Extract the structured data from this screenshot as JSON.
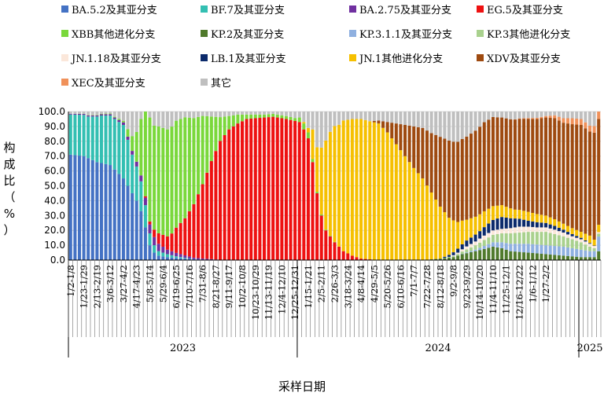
{
  "chart_data": {
    "type": "bar",
    "stacked": true,
    "ylabel_chars": [
      "构",
      "成",
      "比",
      "（",
      "%",
      "）"
    ],
    "xlabel": "采样日期",
    "ylim": [
      0,
      100
    ],
    "yticks": [
      "0.0",
      "10.0",
      "20.0",
      "30.0",
      "40.0",
      "50.0",
      "60.0",
      "70.0",
      "80.0",
      "90.0",
      "100.0"
    ],
    "legend_position": "top",
    "series": [
      {
        "name": "BA.5.2及其亚分支",
        "color": "#4472c4"
      },
      {
        "name": "BF.7及其亚分支",
        "color": "#33bfb2"
      },
      {
        "name": "BA.2.75及其亚分支",
        "color": "#7030a0"
      },
      {
        "name": "EG.5及其亚分支",
        "color": "#ee1111"
      },
      {
        "name": "XBB其他进化分支",
        "color": "#7ad83b"
      },
      {
        "name": "KP.2及其亚分支",
        "color": "#507a2c"
      },
      {
        "name": "KP.3.1.1及其亚分支",
        "color": "#8fb0e0"
      },
      {
        "name": "KP.3其他进化分支",
        "color": "#a9d18e"
      },
      {
        "name": "JN.1.18及其亚分支",
        "color": "#fbe7da"
      },
      {
        "name": "LB.1及其亚分支",
        "color": "#0b2a6b"
      },
      {
        "name": "JN.1其他进化分支",
        "color": "#f6c000"
      },
      {
        "name": "XDV及其亚分支",
        "color": "#9e4a10"
      },
      {
        "name": "XEC及其亚分支",
        "color": "#f0915a"
      },
      {
        "name": "其它",
        "color": "#bfbfbf"
      }
    ],
    "key_points": {
      "BA.5.2及其亚分支": [
        [
          0,
          71
        ],
        [
          3,
          70
        ],
        [
          6,
          66
        ],
        [
          9,
          64
        ],
        [
          12,
          55
        ],
        [
          14,
          45
        ],
        [
          15,
          40
        ],
        [
          16,
          33
        ],
        [
          17,
          22
        ],
        [
          18,
          10
        ],
        [
          19,
          5
        ],
        [
          20,
          3
        ],
        [
          22,
          2
        ],
        [
          26,
          1
        ],
        [
          30,
          0.3
        ],
        [
          34,
          0
        ]
      ],
      "BF.7及其亚分支": [
        [
          0,
          27
        ],
        [
          4,
          28
        ],
        [
          7,
          32
        ],
        [
          10,
          34
        ],
        [
          12,
          36
        ],
        [
          14,
          26
        ],
        [
          16,
          20
        ],
        [
          17,
          15
        ],
        [
          18,
          8
        ],
        [
          19,
          5
        ],
        [
          20,
          3
        ],
        [
          22,
          2
        ],
        [
          24,
          1
        ],
        [
          28,
          0
        ]
      ],
      "BA.2.75及其亚分支": [
        [
          0,
          0.5
        ],
        [
          10,
          1
        ],
        [
          14,
          2.5
        ],
        [
          16,
          4
        ],
        [
          17,
          5
        ],
        [
          18,
          6
        ],
        [
          20,
          5
        ],
        [
          22,
          3
        ],
        [
          25,
          2
        ],
        [
          28,
          1
        ],
        [
          32,
          0.5
        ],
        [
          36,
          0
        ]
      ],
      "EG.5及其亚分支": [
        [
          0,
          0
        ],
        [
          16,
          0
        ],
        [
          18,
          2
        ],
        [
          19,
          5
        ],
        [
          20,
          7
        ],
        [
          21,
          8
        ],
        [
          22,
          9
        ],
        [
          23,
          12
        ],
        [
          24,
          17
        ],
        [
          26,
          25
        ],
        [
          28,
          36
        ],
        [
          30,
          50
        ],
        [
          32,
          66
        ],
        [
          34,
          80
        ],
        [
          36,
          88
        ],
        [
          38,
          92
        ],
        [
          40,
          95
        ],
        [
          44,
          96
        ],
        [
          46,
          96.5
        ],
        [
          49,
          95
        ],
        [
          52,
          93
        ],
        [
          53,
          88
        ],
        [
          54,
          82
        ],
        [
          55,
          66
        ],
        [
          56,
          45
        ],
        [
          57,
          30
        ],
        [
          58,
          20
        ],
        [
          60,
          12
        ],
        [
          62,
          6
        ],
        [
          64,
          3
        ],
        [
          66,
          1
        ],
        [
          70,
          0
        ]
      ],
      "XBB其他进化分支": [
        [
          0,
          0
        ],
        [
          10,
          0.5
        ],
        [
          12,
          1
        ],
        [
          13,
          5
        ],
        [
          14,
          10
        ],
        [
          15,
          20
        ],
        [
          16,
          38
        ],
        [
          17,
          57
        ],
        [
          18,
          70
        ],
        [
          19,
          70
        ],
        [
          20,
          72
        ],
        [
          22,
          72
        ],
        [
          24,
          72
        ],
        [
          26,
          68
        ],
        [
          28,
          58
        ],
        [
          30,
          46
        ],
        [
          32,
          30
        ],
        [
          34,
          16
        ],
        [
          36,
          9
        ],
        [
          38,
          6
        ],
        [
          40,
          3
        ],
        [
          44,
          2
        ],
        [
          48,
          2
        ],
        [
          51,
          2
        ],
        [
          52,
          3
        ],
        [
          53,
          4
        ],
        [
          54,
          4
        ],
        [
          55,
          2
        ],
        [
          56,
          1
        ],
        [
          58,
          0.5
        ],
        [
          62,
          0
        ]
      ],
      "KP.2及其亚分支": [
        [
          0,
          0
        ],
        [
          80,
          0
        ],
        [
          84,
          1
        ],
        [
          87,
          2
        ],
        [
          89,
          4
        ],
        [
          92,
          6
        ],
        [
          96,
          9
        ],
        [
          98,
          8
        ],
        [
          100,
          6
        ],
        [
          104,
          5
        ],
        [
          108,
          4
        ],
        [
          112,
          3
        ],
        [
          116,
          2
        ],
        [
          119,
          2
        ],
        [
          120,
          6
        ]
      ],
      "KP.3.1.1及其亚分支": [
        [
          0,
          0
        ],
        [
          88,
          0
        ],
        [
          92,
          1
        ],
        [
          96,
          3
        ],
        [
          100,
          5
        ],
        [
          104,
          6
        ],
        [
          108,
          6
        ],
        [
          112,
          6
        ],
        [
          116,
          5
        ],
        [
          118,
          4
        ],
        [
          119,
          4
        ],
        [
          120,
          10
        ]
      ],
      "KP.3其他进化分支": [
        [
          0,
          0
        ],
        [
          84,
          0
        ],
        [
          88,
          1
        ],
        [
          92,
          3
        ],
        [
          96,
          5
        ],
        [
          100,
          7
        ],
        [
          104,
          8
        ],
        [
          108,
          9
        ],
        [
          112,
          7
        ],
        [
          116,
          5
        ],
        [
          118,
          3
        ],
        [
          119,
          2
        ],
        [
          120,
          2
        ]
      ],
      "JN.1.18及其亚分支": [
        [
          0,
          0
        ],
        [
          86,
          0
        ],
        [
          90,
          2
        ],
        [
          94,
          3
        ],
        [
          98,
          3
        ],
        [
          102,
          4
        ],
        [
          106,
          3
        ],
        [
          110,
          3
        ],
        [
          114,
          2
        ],
        [
          118,
          2
        ],
        [
          120,
          1
        ]
      ],
      "LB.1及其亚分支": [
        [
          0,
          0
        ],
        [
          84,
          0
        ],
        [
          87,
          2
        ],
        [
          90,
          4
        ],
        [
          93,
          5
        ],
        [
          96,
          7
        ],
        [
          98,
          8
        ],
        [
          101,
          6
        ],
        [
          104,
          4
        ],
        [
          108,
          3
        ],
        [
          112,
          2
        ],
        [
          116,
          1
        ],
        [
          120,
          0
        ]
      ],
      "JN.1其他进化分支": [
        [
          0,
          0
        ],
        [
          52,
          0
        ],
        [
          53,
          1
        ],
        [
          54,
          3
        ],
        [
          55,
          20
        ],
        [
          56,
          30
        ],
        [
          57,
          45
        ],
        [
          58,
          60
        ],
        [
          59,
          70
        ],
        [
          60,
          78
        ],
        [
          61,
          82
        ],
        [
          62,
          88
        ],
        [
          64,
          92
        ],
        [
          66,
          94
        ],
        [
          68,
          93
        ],
        [
          70,
          92
        ],
        [
          72,
          86
        ],
        [
          74,
          78
        ],
        [
          76,
          70
        ],
        [
          78,
          62
        ],
        [
          80,
          55
        ],
        [
          82,
          45
        ],
        [
          84,
          35
        ],
        [
          86,
          25
        ],
        [
          88,
          18
        ],
        [
          90,
          14
        ],
        [
          92,
          12
        ],
        [
          95,
          10
        ],
        [
          98,
          8
        ],
        [
          101,
          6
        ],
        [
          104,
          6
        ],
        [
          108,
          5
        ],
        [
          112,
          4
        ],
        [
          116,
          4
        ],
        [
          118,
          5
        ],
        [
          119,
          4
        ],
        [
          120,
          5
        ]
      ],
      "XDV及其亚分支": [
        [
          0,
          0
        ],
        [
          68,
          0
        ],
        [
          70,
          2
        ],
        [
          72,
          7
        ],
        [
          74,
          14
        ],
        [
          76,
          21
        ],
        [
          78,
          28
        ],
        [
          80,
          34
        ],
        [
          82,
          40
        ],
        [
          84,
          47
        ],
        [
          86,
          52
        ],
        [
          88,
          54
        ],
        [
          90,
          56
        ],
        [
          92,
          58
        ],
        [
          94,
          60
        ],
        [
          96,
          60
        ],
        [
          98,
          59
        ],
        [
          100,
          60
        ],
        [
          103,
          62
        ],
        [
          106,
          64
        ],
        [
          108,
          66
        ],
        [
          110,
          68
        ],
        [
          112,
          68
        ],
        [
          114,
          70
        ],
        [
          116,
          72
        ],
        [
          118,
          70
        ],
        [
          119,
          72
        ],
        [
          120,
          72
        ]
      ],
      "XEC及其亚分支": [
        [
          0,
          0
        ],
        [
          100,
          0
        ],
        [
          104,
          0.5
        ],
        [
          108,
          1
        ],
        [
          110,
          2
        ],
        [
          112,
          3
        ],
        [
          114,
          4
        ],
        [
          116,
          4
        ],
        [
          118,
          4
        ],
        [
          120,
          5
        ]
      ]
    },
    "x_tick_labels": [
      "1/2-1/8",
      "1/23-1/29",
      "2/13-2/19",
      "3/6-3/12",
      "3/27-4/2",
      "4/17-4/23",
      "5/8-5/14",
      "5/29-6/4",
      "6/19-6/25",
      "7/10-7/16",
      "7/31-8/6",
      "8/21-8/27",
      "9/11-9/17",
      "10/2-10/8",
      "10/23-10/29",
      "11/13-11/19",
      "12/4-12/10",
      "12/25-12/31",
      "1/15-1/21",
      "2/5-2/11",
      "2/26-3/3",
      "3/18-3/24",
      "4/8-4/14",
      "4/29-5/5",
      "5/20-5/26",
      "6/10-6/16",
      "7/1-7/7",
      "7/22-7/28",
      "8/12-8/18",
      "9/2-9/8",
      "9/23-9/29",
      "10/14-10/20",
      "11/4-11/10",
      "11/25-12/1",
      "12/16-12/22",
      "1/6-1/12",
      "1/27-2/2"
    ],
    "x_tick_every": 3,
    "years": [
      {
        "label": "2023",
        "start": 0,
        "end": 52
      },
      {
        "label": "2024",
        "start": 52,
        "end": 116
      },
      {
        "label": "2025",
        "start": 116,
        "end": 121
      }
    ]
  }
}
